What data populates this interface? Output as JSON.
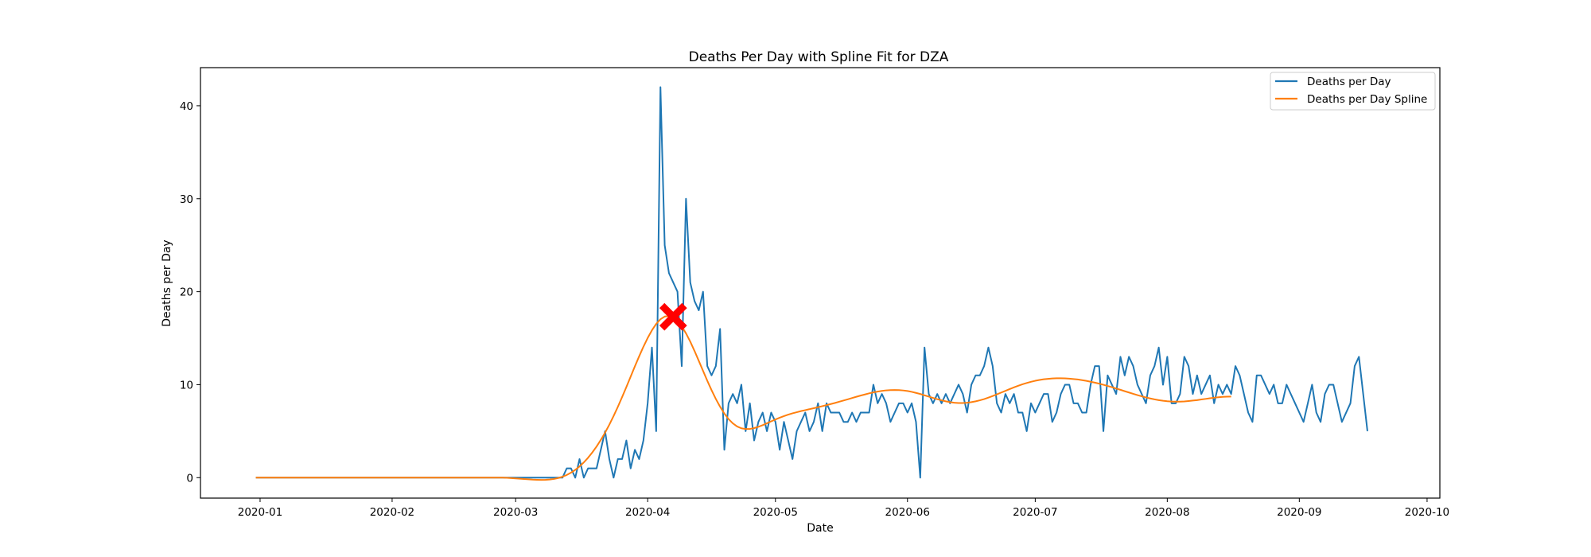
{
  "chart_data": {
    "type": "line",
    "title": "Deaths Per Day with Spline Fit for DZA",
    "xlabel": "Date",
    "ylabel": "Deaths per Day",
    "xlim": [
      "2019-12-18",
      "2020-10-04"
    ],
    "ylim": [
      -2.2,
      44.1
    ],
    "x_ticks": [
      "2020-01",
      "2020-02",
      "2020-03",
      "2020-04",
      "2020-05",
      "2020-06",
      "2020-07",
      "2020-08",
      "2020-09",
      "2020-10"
    ],
    "y_ticks": [
      0,
      10,
      20,
      30,
      40
    ],
    "grid": false,
    "legend_position": "top-right",
    "start_date": "2019-12-31",
    "series": [
      {
        "name": "Deaths per Day",
        "color": "#1f77b4",
        "values": [
          0,
          0,
          0,
          0,
          0,
          0,
          0,
          0,
          0,
          0,
          0,
          0,
          0,
          0,
          0,
          0,
          0,
          0,
          0,
          0,
          0,
          0,
          0,
          0,
          0,
          0,
          0,
          0,
          0,
          0,
          0,
          0,
          0,
          0,
          0,
          0,
          0,
          0,
          0,
          0,
          0,
          0,
          0,
          0,
          0,
          0,
          0,
          0,
          0,
          0,
          0,
          0,
          0,
          0,
          0,
          0,
          0,
          0,
          0,
          0,
          0,
          0,
          0,
          0,
          0,
          0,
          0,
          0,
          0,
          0,
          0,
          0,
          0,
          1,
          1,
          0,
          2,
          0,
          1,
          1,
          1,
          3,
          5,
          2,
          0,
          2,
          2,
          4,
          1,
          3,
          2,
          4,
          8,
          14,
          5,
          42,
          25,
          22,
          21,
          20,
          12,
          30,
          21,
          19,
          18,
          20,
          12,
          11,
          12,
          16,
          3,
          8,
          9,
          8,
          10,
          5,
          8,
          4,
          6,
          7,
          5,
          7,
          6,
          3,
          6,
          4,
          2,
          5,
          6,
          7,
          5,
          6,
          8,
          5,
          8,
          7,
          7,
          7,
          6,
          6,
          7,
          6,
          7,
          7,
          7,
          10,
          8,
          9,
          8,
          6,
          7,
          8,
          8,
          7,
          8,
          6,
          0,
          14,
          9,
          8,
          9,
          8,
          9,
          8,
          9,
          10,
          9,
          7,
          10,
          11,
          11,
          12,
          14,
          12,
          8,
          7,
          9,
          8,
          9,
          7,
          7,
          5,
          8,
          7,
          8,
          9,
          9,
          6,
          7,
          9,
          10,
          10,
          8,
          8,
          7,
          7,
          10,
          12,
          12,
          5,
          11,
          10,
          9,
          13,
          11,
          13,
          12,
          10,
          9,
          8,
          11,
          12,
          14,
          10,
          13,
          8,
          8,
          9,
          13,
          12,
          9,
          11,
          9,
          10,
          11,
          8,
          10,
          9,
          10,
          9,
          12,
          11,
          9,
          7,
          6,
          11,
          11,
          10,
          9,
          10,
          8,
          8,
          10,
          9,
          8,
          7,
          6,
          8,
          10,
          7,
          6,
          9,
          10,
          10,
          8,
          6,
          7,
          8,
          12,
          13,
          9,
          5
        ]
      },
      {
        "name": "Deaths per Day Spline",
        "color": "#ff7f0e",
        "values": [
          0,
          0,
          0,
          0,
          0,
          0,
          0,
          0,
          0,
          0,
          0,
          0,
          0,
          0,
          0,
          0,
          0,
          0,
          0,
          0,
          0,
          0,
          0,
          0,
          0,
          0,
          0,
          0,
          0,
          0,
          0,
          0,
          0,
          0,
          0,
          0,
          0,
          0,
          0,
          0,
          0,
          0,
          0,
          0,
          0,
          0,
          0,
          0,
          0,
          0,
          0,
          0,
          0,
          0,
          0,
          0,
          0,
          0,
          0,
          -0.02,
          -0.05,
          -0.08,
          -0.11,
          -0.15,
          -0.18,
          -0.21,
          -0.23,
          -0.24,
          -0.23,
          -0.2,
          -0.14,
          -0.04,
          0.1,
          0.29,
          0.54,
          0.84,
          1.21,
          1.64,
          2.14,
          2.71,
          3.35,
          4.06,
          4.84,
          5.7,
          6.63,
          7.62,
          8.67,
          9.75,
          10.86,
          11.97,
          13.05,
          14.08,
          15.02,
          15.85,
          16.54,
          17.04,
          17.33,
          17.39,
          17.23,
          16.85,
          16.27,
          15.52,
          14.63,
          13.63,
          12.57,
          11.49,
          10.42,
          9.41,
          8.47,
          7.63,
          6.9,
          6.3,
          5.84,
          5.51,
          5.31,
          5.23,
          5.24,
          5.33,
          5.47,
          5.65,
          5.85,
          6.06,
          6.26,
          6.45,
          6.62,
          6.78,
          6.92,
          7.04,
          7.16,
          7.26,
          7.37,
          7.47,
          7.58,
          7.69,
          7.8,
          7.92,
          8.04,
          8.17,
          8.3,
          8.43,
          8.57,
          8.7,
          8.83,
          8.95,
          9.07,
          9.17,
          9.26,
          9.33,
          9.39,
          9.42,
          9.43,
          9.42,
          9.38,
          9.32,
          9.23,
          9.12,
          9.0,
          8.86,
          8.72,
          8.58,
          8.44,
          8.32,
          8.21,
          8.12,
          8.06,
          8.03,
          8.03,
          8.06,
          8.12,
          8.21,
          8.32,
          8.45,
          8.61,
          8.78,
          8.96,
          9.15,
          9.34,
          9.53,
          9.71,
          9.88,
          10.04,
          10.18,
          10.31,
          10.42,
          10.51,
          10.58,
          10.63,
          10.67,
          10.69,
          10.69,
          10.68,
          10.65,
          10.61,
          10.56,
          10.49,
          10.41,
          10.32,
          10.22,
          10.11,
          9.99,
          9.86,
          9.73,
          9.59,
          9.45,
          9.3,
          9.16,
          9.02,
          8.88,
          8.75,
          8.63,
          8.52,
          8.42,
          8.34,
          8.27,
          8.22,
          8.19,
          8.18,
          8.18,
          8.2,
          8.24,
          8.29,
          8.34,
          8.41,
          8.47,
          8.54,
          8.6,
          8.65,
          8.69,
          8.71,
          8.72
        ]
      }
    ],
    "marker": {
      "date": "2020-04-07",
      "value": 17.3,
      "color": "#ff0000",
      "symbol": "X"
    }
  }
}
